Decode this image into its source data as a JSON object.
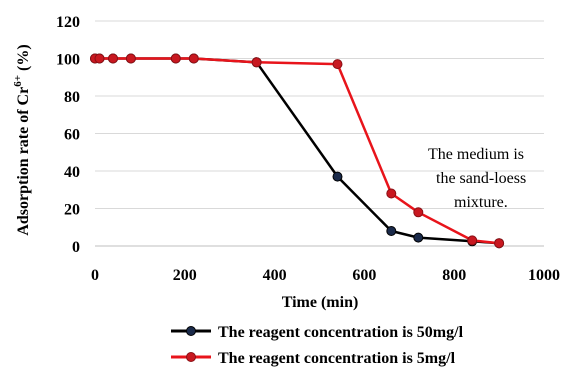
{
  "chart_data": {
    "type": "line",
    "title": "",
    "xlabel": "Time (min)",
    "ylabel_main": "Adsorption rate of Cr",
    "ylabel_super": "6+",
    "ylabel_unit": " (%)",
    "xlim": [
      0,
      1000
    ],
    "ylim": [
      0,
      120
    ],
    "xticks": [
      0,
      200,
      400,
      600,
      800,
      1000
    ],
    "yticks": [
      0,
      20,
      40,
      60,
      80,
      100,
      120
    ],
    "grid": true,
    "legend_position": "bottom-right",
    "series": [
      {
        "name": "The reagent concentration is 50mg/l",
        "color": "#000000",
        "marker_color": "#1a2a4a",
        "x": [
          0,
          10,
          40,
          80,
          180,
          220,
          360,
          540,
          660,
          720,
          840,
          900
        ],
        "y": [
          100,
          100,
          100,
          100,
          100,
          100,
          98,
          37,
          8,
          4.5,
          2.5,
          1.5
        ]
      },
      {
        "name": "The reagent concentration is 5mg/l",
        "color": "#e8141b",
        "marker_color": "#c81820",
        "x": [
          0,
          10,
          40,
          80,
          180,
          220,
          360,
          540,
          660,
          720,
          840,
          900
        ],
        "y": [
          100,
          100,
          100,
          100,
          100,
          100,
          98,
          97,
          28,
          18,
          3,
          1.5
        ]
      }
    ],
    "annotation": [
      "The medium is",
      "the  sand-loess",
      "mixture."
    ]
  }
}
